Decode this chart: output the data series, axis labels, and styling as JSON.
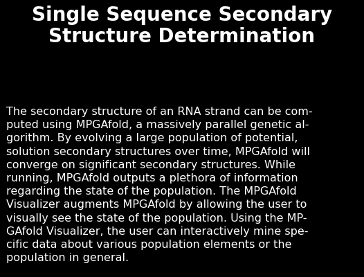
{
  "title_line1": "Single Sequence Secondary",
  "title_line2": "Structure Determination",
  "body_text": "The secondary structure of an RNA strand can be com-\nputed using MPGAfold, a massively parallel genetic al-\ngorithm. By evolving a large population of potential,\nsolution secondary structures over time, MPGAfold will\nconverge on significant secondary structures. While\nrunning, MPGAfold outputs a plethora of information\nregarding the state of the population. The MPGAfold\nVisualizer augments MPGAfold by allowing the user to\nvisually see the state of the population. Using the MP-\nGAfold Visualizer, the user can interactively mine spe-\ncific data about various population elements or the\npopulation in general.",
  "background_color": "#000000",
  "title_color": "#ffffff",
  "body_color": "#ffffff",
  "title_fontsize": 20,
  "body_fontsize": 11.5,
  "fig_width": 5.26,
  "fig_height": 4.0,
  "dpi": 100
}
